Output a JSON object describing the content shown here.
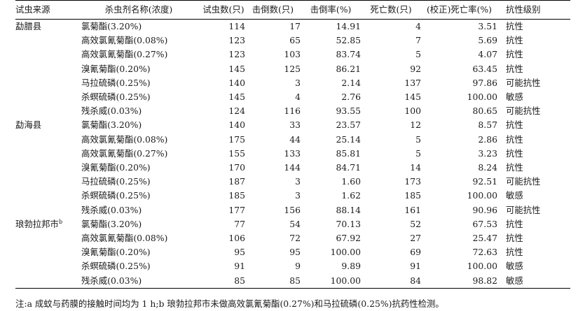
{
  "headers": {
    "region": "试虫来源",
    "insecticide": "杀虫剂名称(浓度)",
    "tested": "试虫数(只)",
    "knockdown": "击倒数(只)",
    "knockdown_rate": "击倒率(%)",
    "dead": "死亡数(只)",
    "mortality": "(校正)死亡率(%)",
    "resistance": "抗性级别"
  },
  "rows": [
    {
      "region": "勐腊县",
      "sup": "",
      "name": "氯菊酯(3.20%)",
      "tested": "114",
      "kd": "17",
      "kdr": "14.91",
      "dead": "4",
      "mort": "3.51",
      "level": "抗性"
    },
    {
      "region": "",
      "sup": "",
      "name": "高效氯氰菊酯(0.08%)",
      "tested": "123",
      "kd": "65",
      "kdr": "52.85",
      "dead": "7",
      "mort": "5.69",
      "level": "抗性"
    },
    {
      "region": "",
      "sup": "",
      "name": "高效氯氰菊酯(0.27%)",
      "tested": "123",
      "kd": "103",
      "kdr": "83.74",
      "dead": "5",
      "mort": "4.07",
      "level": "抗性"
    },
    {
      "region": "",
      "sup": "",
      "name": "溴氰菊酯(0.20%)",
      "tested": "145",
      "kd": "125",
      "kdr": "86.21",
      "dead": "92",
      "mort": "63.45",
      "level": "抗性"
    },
    {
      "region": "",
      "sup": "",
      "name": "马拉硫磷(0.25%)",
      "tested": "140",
      "kd": "3",
      "kdr": "2.14",
      "dead": "137",
      "mort": "97.86",
      "level": "可能抗性"
    },
    {
      "region": "",
      "sup": "",
      "name": "杀螟硫磷(0.25%)",
      "tested": "145",
      "kd": "4",
      "kdr": "2.76",
      "dead": "145",
      "mort": "100.00",
      "level": "敏感"
    },
    {
      "region": "",
      "sup": "",
      "name": "残杀威(0.03%)",
      "tested": "124",
      "kd": "116",
      "kdr": "93.55",
      "dead": "100",
      "mort": "80.65",
      "level": "可能抗性"
    },
    {
      "region": "勐海县",
      "sup": "",
      "name": "氯菊酯(3.20%)",
      "tested": "140",
      "kd": "33",
      "kdr": "23.57",
      "dead": "12",
      "mort": "8.57",
      "level": "抗性"
    },
    {
      "region": "",
      "sup": "",
      "name": "高效氯氰菊酯(0.08%)",
      "tested": "175",
      "kd": "44",
      "kdr": "25.14",
      "dead": "5",
      "mort": "2.86",
      "level": "抗性"
    },
    {
      "region": "",
      "sup": "",
      "name": "高效氯氰菊酯(0.27%)",
      "tested": "155",
      "kd": "133",
      "kdr": "85.81",
      "dead": "5",
      "mort": "3.23",
      "level": "抗性"
    },
    {
      "region": "",
      "sup": "",
      "name": "溴氰菊酯(0.20%)",
      "tested": "170",
      "kd": "144",
      "kdr": "84.71",
      "dead": "14",
      "mort": "8.24",
      "level": "抗性"
    },
    {
      "region": "",
      "sup": "",
      "name": "马拉硫磷(0.25%)",
      "tested": "187",
      "kd": "3",
      "kdr": "1.60",
      "dead": "173",
      "mort": "92.51",
      "level": "可能抗性"
    },
    {
      "region": "",
      "sup": "",
      "name": "杀螟硫磷(0.25%)",
      "tested": "185",
      "kd": "3",
      "kdr": "1.62",
      "dead": "185",
      "mort": "100.00",
      "level": "敏感"
    },
    {
      "region": "",
      "sup": "",
      "name": "残杀威(0.03%)",
      "tested": "177",
      "kd": "156",
      "kdr": "88.14",
      "dead": "161",
      "mort": "90.96",
      "level": "可能抗性"
    },
    {
      "region": "琅勃拉邦市",
      "sup": "b",
      "name": "氯菊酯(3.20%)",
      "tested": "77",
      "kd": "54",
      "kdr": "70.13",
      "dead": "52",
      "mort": "67.53",
      "level": "抗性"
    },
    {
      "region": "",
      "sup": "",
      "name": "高效氯氰菊酯(0.08%)",
      "tested": "106",
      "kd": "72",
      "kdr": "67.92",
      "dead": "27",
      "mort": "25.47",
      "level": "抗性"
    },
    {
      "region": "",
      "sup": "",
      "name": "溴氰菊酯(0.20%)",
      "tested": "95",
      "kd": "95",
      "kdr": "100.00",
      "dead": "69",
      "mort": "72.63",
      "level": "抗性"
    },
    {
      "region": "",
      "sup": "",
      "name": "杀螟硫磷(0.25%)",
      "tested": "91",
      "kd": "9",
      "kdr": "9.89",
      "dead": "91",
      "mort": "100.00",
      "level": "敏感"
    },
    {
      "region": "",
      "sup": "",
      "name": "残杀威(0.03%)",
      "tested": "85",
      "kd": "85",
      "kdr": "100.00",
      "dead": "84",
      "mort": "98.82",
      "level": "敏感"
    }
  ],
  "note": "注:a 成蚊与药膜的接触时间均为 1 h;b 琅勃拉邦市未做高效氯氰菊酯(0.27%)和马拉硫磷(0.25%)抗药性检测。"
}
